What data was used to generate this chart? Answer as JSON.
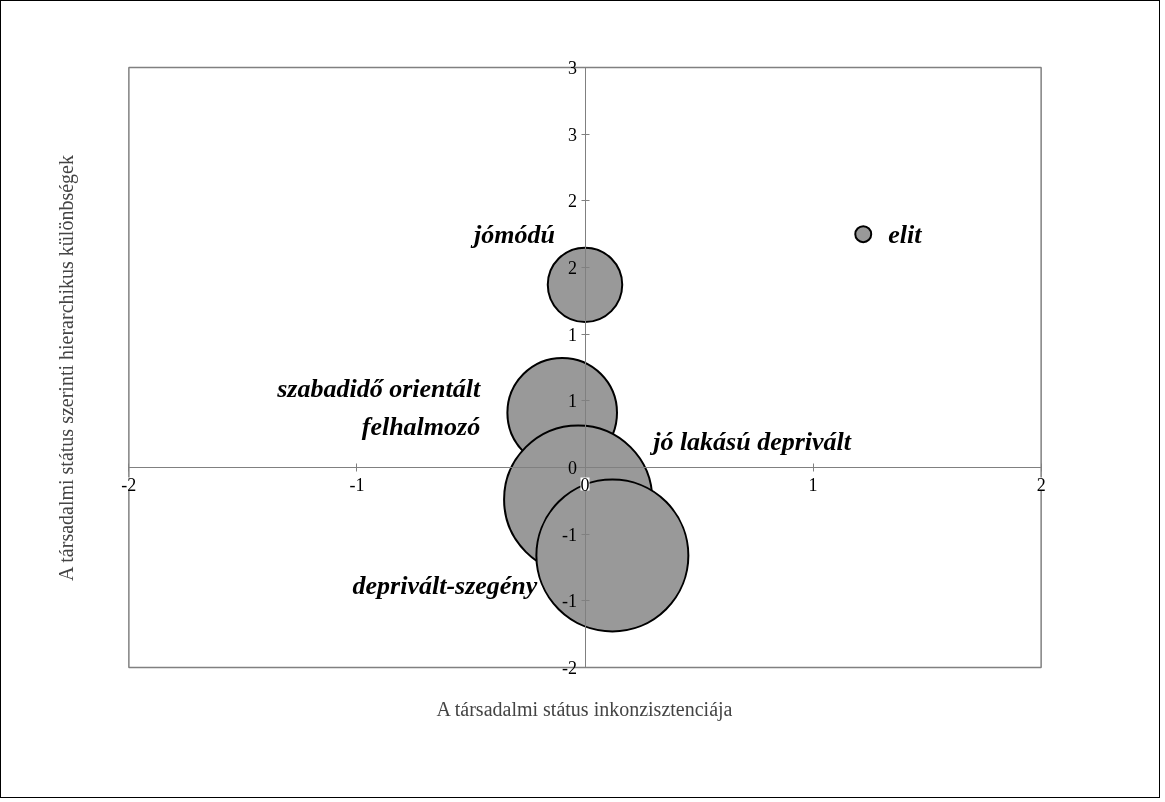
{
  "chart_data": {
    "type": "bubble",
    "xlabel": "A társadalmi státus inkonzisztenciája",
    "ylabel": "A társadalmi státus szerinti hierarchikus különbségek",
    "xlim": [
      -2,
      2
    ],
    "xticks": [
      -2,
      -1,
      0,
      1,
      2
    ],
    "ylim": [
      -1.5,
      3
    ],
    "yticks": [
      {
        "value": -1.5,
        "label": "-2"
      },
      {
        "value": -1,
        "label": "-1"
      },
      {
        "value": -0.5,
        "label": "-1"
      },
      0,
      {
        "value": 0.5,
        "label": "1"
      },
      1,
      {
        "value": 1.5,
        "label": "2"
      },
      2,
      {
        "value": 2.5,
        "label": "3"
      },
      3
    ],
    "grid": false,
    "series": [
      {
        "name": "jómódú",
        "color": "#999999",
        "x": [
          0.0
        ],
        "values": [
          1.37
        ],
        "sizes": [
          0.24
        ]
      },
      {
        "name": "szabadidő orientált\nfelhalmozó",
        "color": "#999999",
        "x": [
          -0.1
        ],
        "values": [
          0.41
        ],
        "sizes": [
          0.52
        ]
      },
      {
        "name": "jó lakású deprivált",
        "color": "#999999",
        "x": [
          -0.03
        ],
        "values": [
          -0.24
        ],
        "sizes": [
          0.95
        ]
      },
      {
        "name": "deprivált-szegény",
        "color": "#999999",
        "x": [
          0.12
        ],
        "values": [
          -0.66
        ],
        "sizes": [
          1
        ]
      },
      {
        "name": "elit",
        "color": "#999999",
        "x": [
          1.22
        ],
        "values": [
          1.75
        ],
        "sizes": [
          0.011
        ]
      }
    ]
  }
}
